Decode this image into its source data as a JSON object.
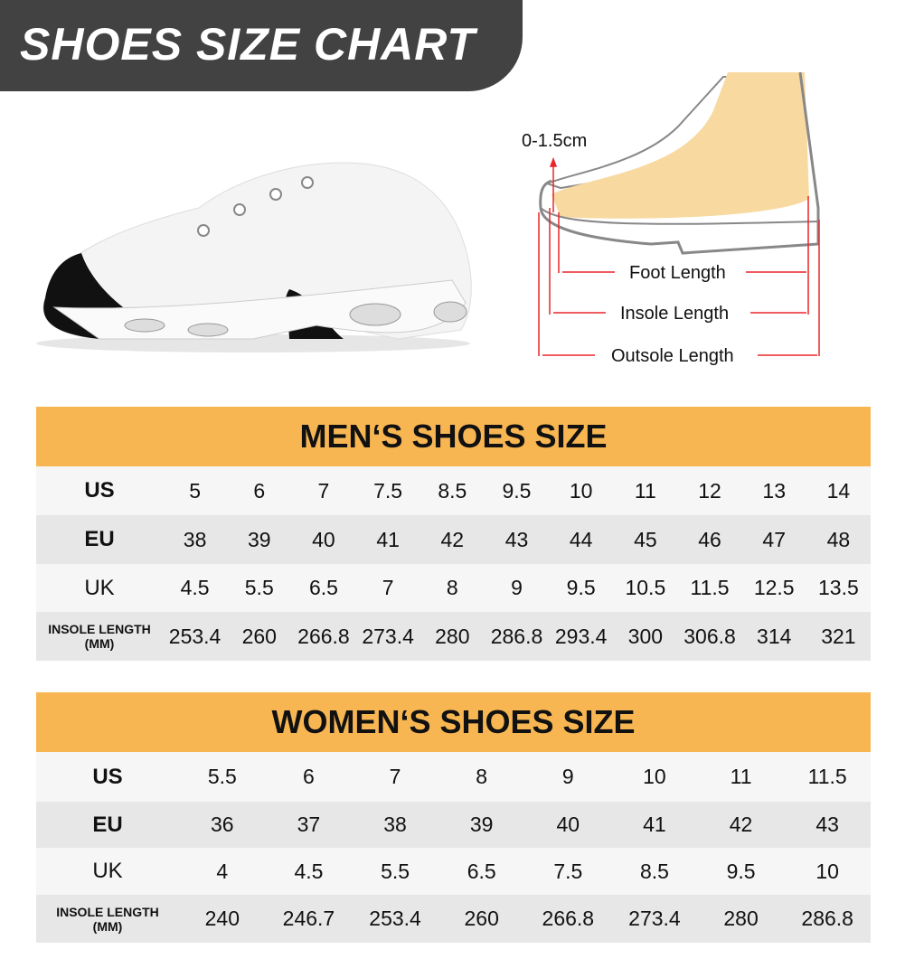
{
  "title": "SHOES SIZE CHART",
  "diagram": {
    "toe_gap": "0-1.5cm",
    "foot_length": "Foot Length",
    "insole_length": "Insole Length",
    "outsole_length": "Outsole Length",
    "line_color": "#e8262a",
    "foot_color": "#f8d9a0"
  },
  "header_color": "#f8b652",
  "men": {
    "title": "MEN‘S SHOES SIZE",
    "rows": [
      {
        "label": "US",
        "values": [
          "5",
          "6",
          "7",
          "7.5",
          "8.5",
          "9.5",
          "10",
          "11",
          "12",
          "13",
          "14"
        ]
      },
      {
        "label": "EU",
        "values": [
          "38",
          "39",
          "40",
          "41",
          "42",
          "43",
          "44",
          "45",
          "46",
          "47",
          "48"
        ]
      },
      {
        "label": "UK",
        "values": [
          "4.5",
          "5.5",
          "6.5",
          "7",
          "8",
          "9",
          "9.5",
          "10.5",
          "11.5",
          "12.5",
          "13.5"
        ]
      },
      {
        "label": "INSOLE LENGTH",
        "label2": "(MM)",
        "values": [
          "253.4",
          "260",
          "266.8",
          "273.4",
          "280",
          "286.8",
          "293.4",
          "300",
          "306.8",
          "314",
          "321"
        ]
      }
    ]
  },
  "women": {
    "title": "WOMEN‘S SHOES SIZE",
    "rows": [
      {
        "label": "US",
        "values": [
          "5.5",
          "6",
          "7",
          "8",
          "9",
          "10",
          "11",
          "11.5"
        ]
      },
      {
        "label": "EU",
        "values": [
          "36",
          "37",
          "38",
          "39",
          "40",
          "41",
          "42",
          "43"
        ]
      },
      {
        "label": "UK",
        "values": [
          "4",
          "4.5",
          "5.5",
          "6.5",
          "7.5",
          "8.5",
          "9.5",
          "10"
        ]
      },
      {
        "label": "INSOLE LENGTH",
        "label2": "(MM)",
        "values": [
          "240",
          "246.7",
          "253.4",
          "260",
          "266.8",
          "273.4",
          "280",
          "286.8"
        ]
      }
    ]
  }
}
